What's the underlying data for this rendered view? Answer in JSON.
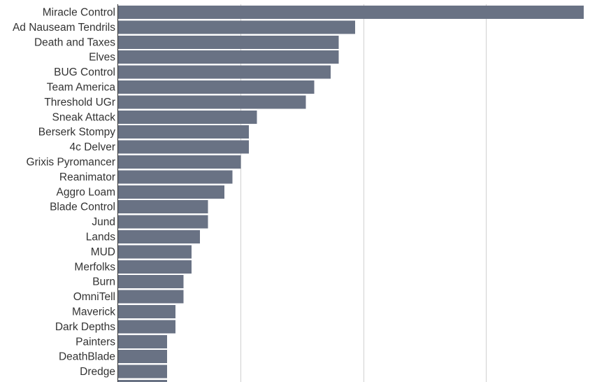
{
  "chart_data": {
    "type": "bar",
    "orientation": "horizontal",
    "categories": [
      "Miracle Control",
      "Ad Nauseam Tendrils",
      "Death and Taxes",
      "Elves",
      "BUG Control",
      "Team America",
      "Threshold UGr",
      "Sneak Attack",
      "Berserk Stompy",
      "4c Delver",
      "Grixis Pyromancer",
      "Reanimator",
      "Aggro Loam",
      "Blade Control",
      "Jund",
      "Lands",
      "MUD",
      "Merfolks",
      "Burn",
      "OmniTell",
      "Maverick",
      "Dark Depths",
      "Painters",
      "DeathBlade",
      "Dredge",
      ""
    ],
    "values": [
      57,
      29,
      27,
      27,
      26,
      24,
      23,
      17,
      16,
      16,
      15,
      14,
      13,
      11,
      11,
      10,
      9,
      9,
      8,
      8,
      7,
      7,
      6,
      6,
      6,
      6
    ],
    "xlim": [
      0,
      57
    ],
    "grid": true,
    "bar_color": "#697284",
    "grid_color": "#d0d0d0",
    "axis_color": "#333333"
  }
}
